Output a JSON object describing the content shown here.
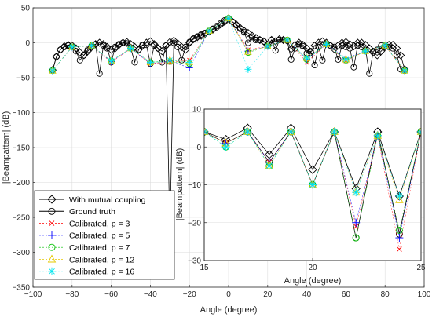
{
  "chart_data": [
    {
      "type": "line",
      "title": "",
      "xlabel": "Angle (degree)",
      "ylabel": "|Beampattern| (dB)",
      "xlim": [
        -100,
        100
      ],
      "ylim": [
        -350,
        50
      ],
      "xticks": [
        "−100",
        "−80",
        "−60",
        "−40",
        "−20",
        "0",
        "20",
        "40",
        "60",
        "80",
        "100"
      ],
      "yticks": [
        "50",
        "0",
        "−50",
        "−100",
        "−150",
        "−200",
        "−250",
        "−300",
        "−350"
      ],
      "grid": true,
      "legend_position": "bottom-left",
      "legend": [
        "With mutual coupling",
        "Ground truth",
        "Calibrated, p = 3",
        "Calibrated, p = 5",
        "Calibrated, p = 7",
        "Calibrated, p = 12",
        "Calibrated, p = 16"
      ],
      "series": [
        {
          "name": "With mutual coupling",
          "color": "#000000",
          "marker": "diamond",
          "x": [
            -90,
            -88,
            -86,
            -84,
            -82,
            -80,
            -78,
            -76,
            -74,
            -72,
            -70,
            -68,
            -66,
            -64,
            -62,
            -60,
            -58,
            -56,
            -54,
            -52,
            -50,
            -48,
            -46,
            -44,
            -42,
            -40,
            -38,
            -36,
            -34,
            -32,
            -30,
            -28,
            -26,
            -24,
            -22,
            -20,
            -18,
            -16,
            -14,
            -12,
            -10,
            -8,
            -6,
            -4,
            -2,
            0,
            2,
            4,
            6,
            8,
            10,
            12,
            14,
            16,
            18,
            20,
            22,
            24,
            26,
            28,
            30,
            32,
            34,
            36,
            38,
            40,
            42,
            44,
            46,
            48,
            50,
            52,
            54,
            56,
            58,
            60,
            62,
            64,
            66,
            68,
            70,
            72,
            74,
            76,
            78,
            80,
            82,
            84,
            86,
            88,
            90
          ],
          "y": [
            -39,
            -20,
            -10,
            -5,
            -3,
            -4,
            -8,
            -14,
            -18,
            -12,
            -6,
            -2,
            0,
            -2,
            -6,
            -10,
            -8,
            -3,
            0,
            1,
            -2,
            -6,
            -10,
            -4,
            0,
            2,
            -2,
            -8,
            -12,
            -4,
            1,
            3,
            -1,
            -6,
            -10,
            0,
            5,
            8,
            10,
            13,
            16,
            19,
            22,
            26,
            30,
            35,
            30,
            26,
            21,
            17,
            14,
            10,
            7,
            4,
            2,
            -3,
            4,
            2,
            5,
            4,
            3,
            -9,
            -3,
            0,
            -3,
            -8,
            -14,
            -4,
            0,
            2,
            0,
            -4,
            -9,
            -4,
            0,
            1,
            -2,
            -5,
            0,
            0,
            -3,
            -8,
            -14,
            -18,
            -12,
            -6,
            -3,
            -3,
            -8,
            -18,
            -38
          ]
        },
        {
          "name": "Ground truth",
          "color": "#000000",
          "marker": "circle",
          "x": [
            -90,
            -88,
            -86,
            -84,
            -82,
            -80,
            -78,
            -76,
            -74,
            -72,
            -70,
            -68,
            -66,
            -64,
            -62,
            -60,
            -58,
            -56,
            -54,
            -52,
            -50,
            -48,
            -46,
            -44,
            -42,
            -40,
            -38,
            -36,
            -34,
            -32,
            -30,
            -28,
            -26,
            -24,
            -22,
            -20,
            -18,
            -16,
            -14,
            -12,
            -10,
            -8,
            -6,
            -4,
            -2,
            0,
            2,
            4,
            6,
            8,
            10,
            12,
            14,
            16,
            18,
            20,
            22,
            24,
            26,
            28,
            30,
            32,
            34,
            36,
            38,
            40,
            42,
            44,
            46,
            48,
            50,
            52,
            54,
            56,
            58,
            60,
            62,
            64,
            66,
            68,
            70,
            72,
            74,
            76,
            78,
            80,
            82,
            84,
            86,
            88,
            90
          ],
          "y": [
            -40,
            -20,
            -10,
            -6,
            -4,
            -6,
            -12,
            -25,
            -18,
            -10,
            -4,
            -2,
            -44,
            -4,
            -8,
            -28,
            -6,
            -2,
            0,
            -1,
            -8,
            -28,
            -10,
            -3,
            -3,
            -30,
            -4,
            -8,
            -28,
            -4,
            -270,
            0,
            -6,
            -25,
            -6,
            1,
            6,
            9,
            12,
            14,
            17,
            20,
            24,
            28,
            32,
            35,
            30,
            25,
            20,
            15,
            0,
            8,
            4,
            4,
            2,
            -5,
            4,
            -11,
            4,
            4,
            3,
            -24,
            -8,
            -2,
            -5,
            -15,
            -12,
            -32,
            -6,
            -25,
            -2,
            -4,
            -6,
            -24,
            -4,
            -6,
            -8,
            -35,
            -4,
            -6,
            -10,
            -44,
            -12,
            -10,
            -4,
            -4,
            -6,
            -8,
            -18,
            -38,
            -40
          ]
        },
        {
          "name": "Calibrated, p = 3",
          "color": "#ff0000",
          "marker": "x",
          "x": [
            -90,
            -80,
            -70,
            -60,
            -50,
            -40,
            -30,
            -20,
            -10,
            0,
            10,
            20,
            30,
            40,
            50,
            60,
            70,
            80,
            90
          ],
          "y": [
            -40,
            -6,
            -4,
            -28,
            -8,
            -30,
            -28,
            -25,
            17,
            35,
            -10,
            -5,
            4,
            -28,
            -2,
            -26,
            -12,
            -4,
            -40
          ]
        },
        {
          "name": "Calibrated, p = 5",
          "color": "#0000ff",
          "marker": "plus",
          "x": [
            -90,
            -80,
            -70,
            -60,
            -50,
            -40,
            -30,
            -20,
            -10,
            0,
            10,
            20,
            30,
            40,
            50,
            60,
            70,
            80,
            90
          ],
          "y": [
            -40,
            -6,
            -4,
            -27,
            -8,
            -30,
            -26,
            -36,
            17,
            35,
            -12,
            -5,
            4,
            -24,
            -2,
            -22,
            -12,
            -4,
            -40
          ]
        },
        {
          "name": "Calibrated, p = 7",
          "color": "#00c000",
          "marker": "circle",
          "x": [
            -90,
            -80,
            -70,
            -60,
            -50,
            -40,
            -30,
            -20,
            -10,
            0,
            10,
            20,
            30,
            40,
            50,
            60,
            70,
            80,
            90
          ],
          "y": [
            -40,
            -6,
            -4,
            -26,
            -8,
            -28,
            -27,
            -30,
            17,
            35,
            -14,
            -5,
            4,
            -24,
            -2,
            -25,
            -12,
            -4,
            -40
          ]
        },
        {
          "name": "Calibrated, p = 12",
          "color": "#e6c800",
          "marker": "triangle",
          "x": [
            -90,
            -80,
            -70,
            -60,
            -50,
            -40,
            -30,
            -20,
            -10,
            0,
            10,
            20,
            30,
            40,
            50,
            60,
            70,
            80,
            90
          ],
          "y": [
            -40,
            -6,
            -4,
            -26,
            -8,
            -28,
            -25,
            -28,
            17,
            35,
            -13,
            -5,
            4,
            -22,
            -2,
            -24,
            -12,
            -4,
            -40
          ]
        },
        {
          "name": "Calibrated, p = 16",
          "color": "#00e5ee",
          "marker": "star",
          "x": [
            -90,
            -80,
            -70,
            -60,
            -50,
            -40,
            -30,
            -20,
            -10,
            0,
            10,
            20,
            30,
            40,
            50,
            60,
            70,
            80,
            90
          ],
          "y": [
            -40,
            -6,
            -4,
            -26,
            -8,
            -28,
            -25,
            -28,
            17,
            35,
            -38,
            -5,
            4,
            -22,
            -2,
            -24,
            -12,
            -4,
            -40
          ]
        }
      ]
    },
    {
      "type": "line",
      "title": "",
      "xlabel": "Angle (degree)",
      "ylabel": "|Beampattern| (dB)",
      "xlim": [
        15,
        25
      ],
      "ylim": [
        -30,
        10
      ],
      "xticks": [
        "15",
        "20",
        "25"
      ],
      "yticks": [
        "10",
        "0",
        "−10",
        "−20",
        "−30"
      ],
      "grid": true,
      "x": [
        15,
        16,
        17,
        18,
        19,
        20,
        21,
        22,
        23,
        24,
        25
      ],
      "series": [
        {
          "name": "With mutual coupling",
          "color": "#000000",
          "marker": "diamond",
          "y": [
            4,
            2,
            5,
            -2,
            5,
            -6,
            4,
            -11,
            4,
            -13,
            4
          ]
        },
        {
          "name": "Ground truth",
          "color": "#000000",
          "marker": "circle",
          "y": [
            4,
            1,
            4,
            -4,
            4,
            -10,
            4,
            -24,
            4,
            -23,
            4
          ]
        },
        {
          "name": "Calibrated, p = 3",
          "color": "#ff0000",
          "marker": "x",
          "y": [
            4,
            1,
            4,
            -4,
            4,
            -10,
            4,
            -21,
            3,
            -27,
            4
          ]
        },
        {
          "name": "Calibrated, p = 5",
          "color": "#0000ff",
          "marker": "plus",
          "y": [
            4,
            1,
            4,
            -4,
            4,
            -10,
            4,
            -20,
            3,
            -24,
            4
          ]
        },
        {
          "name": "Calibrated, p = 7",
          "color": "#00c000",
          "marker": "circle",
          "y": [
            4,
            0,
            4,
            -5,
            4,
            -10,
            4,
            -24,
            3,
            -22,
            4
          ]
        },
        {
          "name": "Calibrated, p = 12",
          "color": "#e6c800",
          "marker": "triangle",
          "y": [
            4,
            1,
            4,
            -5,
            4,
            -10,
            4,
            -12,
            3,
            -14,
            4
          ]
        },
        {
          "name": "Calibrated, p = 16",
          "color": "#00e5ee",
          "marker": "star",
          "y": [
            4,
            0,
            4,
            -5,
            4,
            -10,
            4,
            -12,
            3,
            -13,
            4
          ]
        }
      ]
    }
  ]
}
